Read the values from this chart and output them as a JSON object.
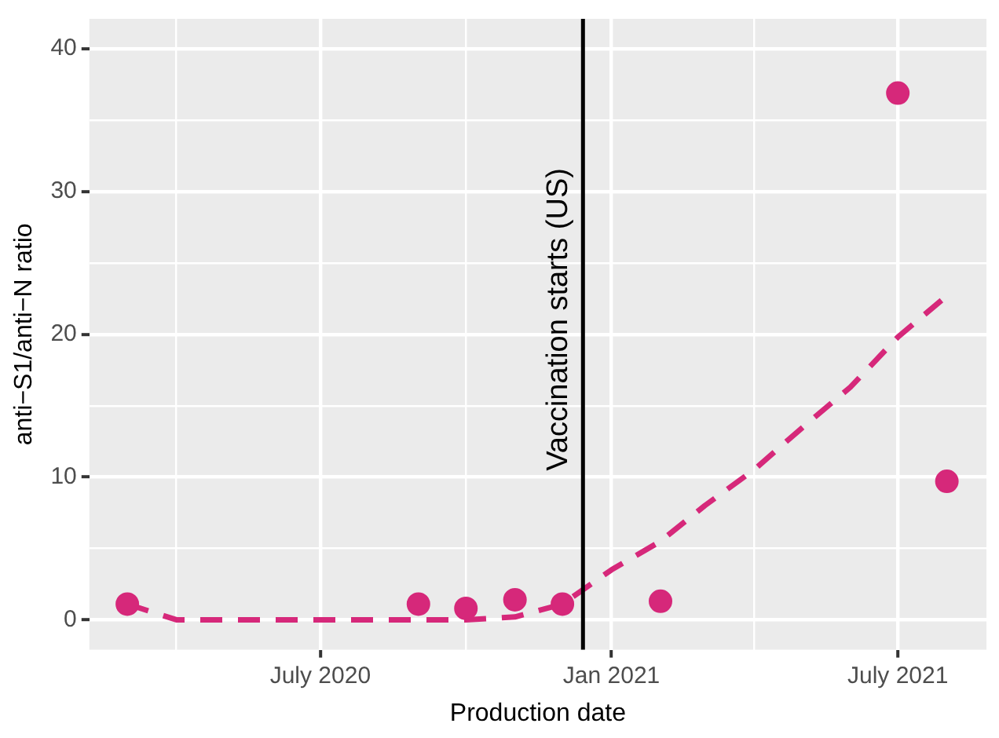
{
  "chart_data": {
    "type": "scatter",
    "xlabel": "Production date",
    "ylabel": "anti−S1/anti−N ratio",
    "x": [
      "2020-03-01",
      "2020-09-01",
      "2020-10-01",
      "2020-11-01",
      "2020-12-01",
      "2021-02-01",
      "2021-07-01",
      "2021-08-01"
    ],
    "series": [
      {
        "color": "#d6287a",
        "values": [
          1.1,
          1.1,
          0.8,
          1.4,
          1.1,
          1.3,
          36.9,
          9.7
        ],
        "marker": "circle"
      },
      {
        "type": "line",
        "color": "#d6287a",
        "line_style": "dashed",
        "marker": "none",
        "x": [
          "2020-03-01",
          "2020-04-01",
          "2020-10-01",
          "2020-11-01",
          "2020-12-01",
          "2021-01-01",
          "2021-02-01",
          "2021-03-01",
          "2021-04-01",
          "2021-05-01",
          "2021-06-01",
          "2021-07-01",
          "2021-08-01"
        ],
        "values": [
          1.1,
          0,
          0,
          0.2,
          1.1,
          3.5,
          5.5,
          8,
          10.5,
          13.4,
          16.3,
          19.8,
          22.7
        ]
      }
    ],
    "xlim": [
      "2020-02-06",
      "2021-08-26"
    ],
    "xticks": [
      {
        "value": "2020-04-01",
        "label": null
      },
      {
        "value": "2020-07-01",
        "label": "July 2020"
      },
      {
        "value": "2020-10-01",
        "label": null
      },
      {
        "value": "2021-01-01",
        "label": "Jan 2021"
      },
      {
        "value": "2021-04-01",
        "label": null
      },
      {
        "value": "2021-07-01",
        "label": "July 2021"
      }
    ],
    "ylim": [
      -2.1,
      42.1
    ],
    "yticks": [
      0,
      {
        "value": 5,
        "label": null
      },
      10,
      {
        "value": 15,
        "label": null
      },
      20,
      {
        "value": 25,
        "label": null
      },
      30,
      {
        "value": 35,
        "label": null
      },
      40
    ],
    "ref_lines": [
      {
        "axis": "x",
        "value": "2020-12-14",
        "label": "Vaccination starts (US)",
        "color": "#000000"
      }
    ],
    "grid": true,
    "legend": false
  }
}
